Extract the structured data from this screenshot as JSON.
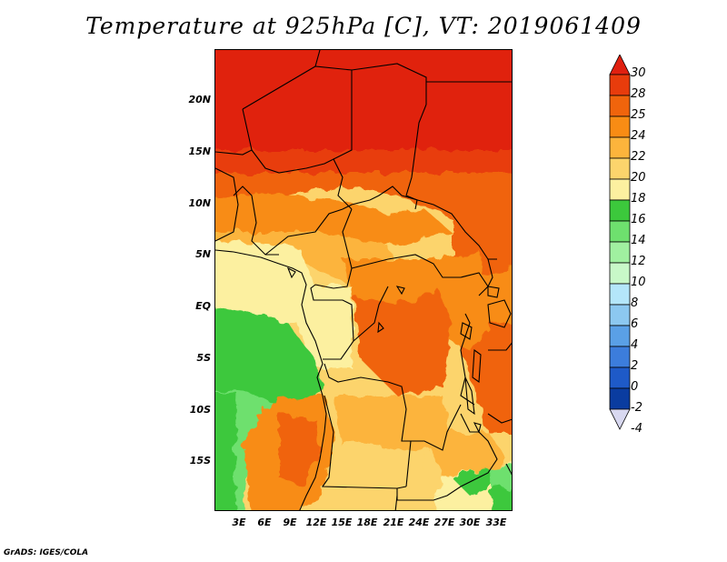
{
  "title": "Temperature at 925hPa [C], VT: 2019061409",
  "credit": "GrADS: IGES/COLA",
  "y_axis": [
    "20N",
    "15N",
    "10N",
    "5N",
    "EQ",
    "5S",
    "10S",
    "15S"
  ],
  "x_axis": [
    "3E",
    "6E",
    "9E",
    "12E",
    "15E",
    "18E",
    "21E",
    "24E",
    "27E",
    "30E",
    "33E"
  ],
  "colorbar": {
    "labels": [
      "30",
      "28",
      "25",
      "24",
      "22",
      "20",
      "18",
      "16",
      "14",
      "12",
      "10",
      "8",
      "6",
      "4",
      "2",
      "0",
      "-2",
      "-4"
    ],
    "colors": [
      "#e02010",
      "#e83c0c",
      "#f0640c",
      "#f88c14",
      "#fcb43c",
      "#fcd46c",
      "#fcf0a0",
      "#3cc83c",
      "#6ee06e",
      "#a0f0a0",
      "#c8f8c8",
      "#b4e6fa",
      "#8cc8f0",
      "#5aa0e6",
      "#3c7ddc",
      "#1e5ac8",
      "#0a3ca0",
      "#0a0a64"
    ]
  }
}
